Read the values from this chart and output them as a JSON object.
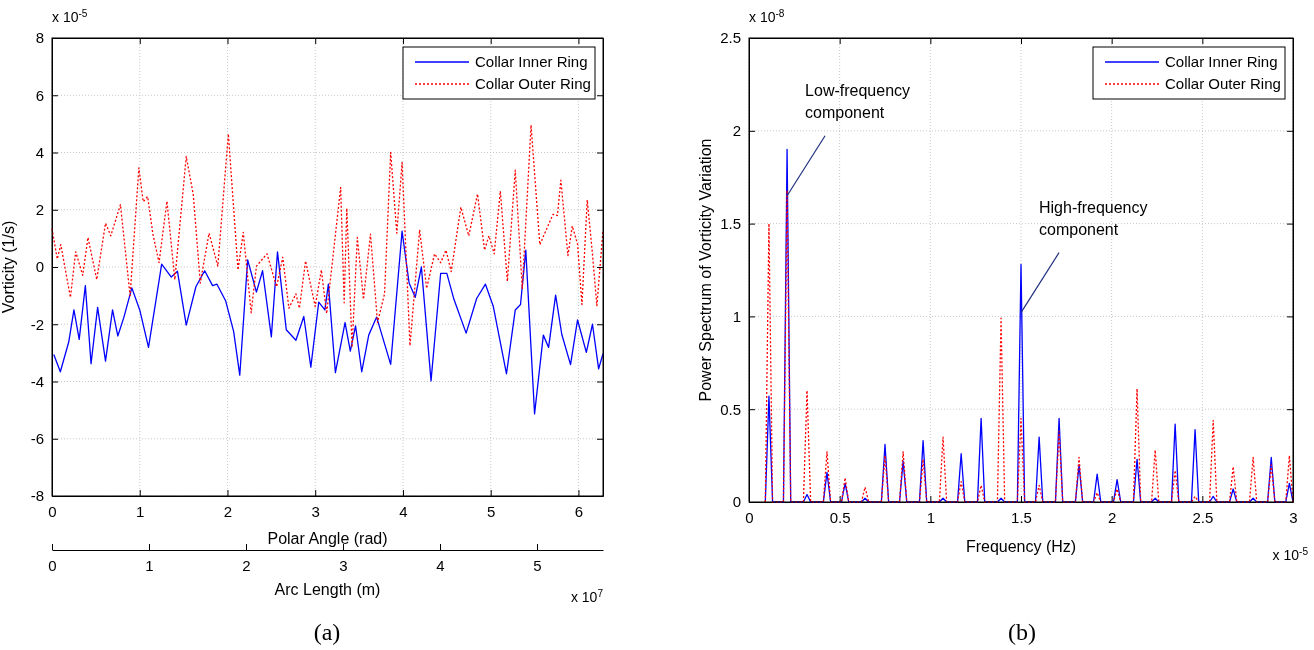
{
  "chart_data": [
    {
      "type": "line",
      "xlabel": "Polar Angle (rad)",
      "ylabel": "Vorticity (1/s)",
      "x2label": "Arc Length (m)",
      "xlim": [
        0,
        6.28
      ],
      "xticks": [
        0,
        1,
        2,
        3,
        4,
        5,
        6
      ],
      "ylim": [
        -8,
        8
      ],
      "yticks": [
        -8,
        -6,
        -4,
        -2,
        0,
        2,
        4,
        6,
        8
      ],
      "x2lim": [
        0,
        5.68
      ],
      "x2ticks": [
        0,
        1,
        2,
        3,
        4,
        5
      ],
      "grid": true,
      "legend": "top right",
      "marker": "none",
      "annotations": [
        "x 10$^{-5}$",
        "x 10$^{7}$",
        "(a)"
      ],
      "series": [
        {
          "name": "Collar Inner Ring",
          "color": "#0000ff",
          "line_style": "solid",
          "x": [
            0.02,
            0.095,
            0.19,
            0.25,
            0.31,
            0.38,
            0.445,
            0.52,
            0.61,
            0.69,
            0.75,
            0.82,
            0.91,
            1.0,
            1.1,
            1.25,
            1.36,
            1.43,
            1.53,
            1.64,
            1.74,
            1.83,
            1.88,
            1.98,
            2.07,
            2.14,
            2.23,
            2.33,
            2.4,
            2.5,
            2.57,
            2.67,
            2.78,
            2.87,
            2.95,
            3.04,
            3.11,
            3.15,
            3.23,
            3.34,
            3.4,
            3.46,
            3.53,
            3.61,
            3.7,
            3.86,
            3.99,
            4.07,
            4.14,
            4.21,
            4.32,
            4.43,
            4.5,
            4.58,
            4.72,
            4.84,
            4.94,
            5.03,
            5.18,
            5.28,
            5.34,
            5.4,
            5.5,
            5.6,
            5.66,
            5.74,
            5.81,
            5.91,
            5.99,
            6.09,
            6.16,
            6.23,
            6.28
          ],
          "values": [
            -3.06,
            -3.66,
            -2.63,
            -1.5,
            -2.53,
            -0.65,
            -3.38,
            -1.41,
            -3.29,
            -1.5,
            -2.41,
            -1.75,
            -0.73,
            -1.5,
            -2.81,
            0.1,
            -0.35,
            -0.15,
            -2.03,
            -0.69,
            -0.13,
            -0.65,
            -0.6,
            -1.19,
            -2.25,
            -3.78,
            0.25,
            -0.88,
            -0.13,
            -2.44,
            0.53,
            -2.19,
            -2.56,
            -1.73,
            -3.5,
            -1.23,
            -1.5,
            -0.6,
            -3.69,
            -1.94,
            -2.94,
            -2.06,
            -3.66,
            -2.38,
            -1.75,
            -3.4,
            1.25,
            -0.56,
            -1.06,
            0.0,
            -3.98,
            -0.22,
            -0.22,
            -1.12,
            -2.31,
            -1.1,
            -0.6,
            -1.38,
            -3.73,
            -1.5,
            -1.31,
            0.59,
            -5.13,
            -2.38,
            -2.81,
            -0.98,
            -2.35,
            -3.41,
            -1.85,
            -2.98,
            -2.0,
            -3.56,
            -3.03
          ]
        },
        {
          "name": "Collar Outer Ring",
          "color": "#ff0000",
          "line_style": "dotted",
          "x": [
            0,
            0.06,
            0.1,
            0.21,
            0.27,
            0.35,
            0.41,
            0.51,
            0.61,
            0.67,
            0.78,
            0.89,
            0.99,
            1.04,
            1.09,
            1.15,
            1.22,
            1.31,
            1.4,
            1.53,
            1.61,
            1.69,
            1.79,
            1.89,
            2.01,
            2.12,
            2.18,
            2.27,
            2.33,
            2.45,
            2.56,
            2.63,
            2.7,
            2.78,
            2.82,
            2.89,
            3.0,
            3.07,
            3.13,
            3.29,
            3.33,
            3.36,
            3.42,
            3.48,
            3.55,
            3.63,
            3.71,
            3.79,
            3.86,
            3.93,
            3.99,
            4.08,
            4.19,
            4.27,
            4.36,
            4.43,
            4.49,
            4.55,
            4.66,
            4.75,
            4.85,
            4.93,
            4.98,
            5.04,
            5.11,
            5.19,
            5.28,
            5.36,
            5.46,
            5.56,
            5.71,
            5.76,
            5.8,
            5.88,
            5.93,
            5.99,
            6.04,
            6.1,
            6.16,
            6.21,
            6.28
          ],
          "values": [
            1.34,
            0.28,
            0.78,
            -1.06,
            0.53,
            -0.29,
            1.03,
            -0.44,
            1.53,
            1.09,
            2.18,
            -1.0,
            3.46,
            2.28,
            2.46,
            1.15,
            0.15,
            2.3,
            -0.44,
            3.86,
            2.53,
            -0.56,
            1.18,
            0.03,
            4.65,
            -0.1,
            1.21,
            -1.6,
            0.03,
            0.46,
            -0.69,
            0.34,
            -1.44,
            -0.94,
            -1.44,
            0.21,
            -1.38,
            -0.1,
            -1.63,
            2.78,
            -1.25,
            2.05,
            -2.81,
            1.03,
            -1.13,
            1.15,
            -1.94,
            -0.94,
            4.0,
            1.18,
            3.65,
            -2.75,
            1.3,
            -0.75,
            0.46,
            0.15,
            0.59,
            -0.16,
            2.09,
            1.09,
            2.55,
            0.59,
            1.09,
            0.46,
            2.65,
            -0.5,
            3.38,
            -0.75,
            4.96,
            0.78,
            1.84,
            1.8,
            3.03,
            0.4,
            1.43,
            0.8,
            -1.31,
            2.34,
            0.46,
            -1.35,
            1.28
          ]
        }
      ]
    },
    {
      "type": "line",
      "xlabel": "Frequency (Hz)",
      "ylabel": "Power Spectrum of Vorticity Variation",
      "xlim": [
        0,
        3
      ],
      "xticks": [
        0,
        0.5,
        1,
        1.5,
        2,
        2.5,
        3
      ],
      "ylim": [
        0,
        2.5
      ],
      "yticks": [
        0,
        0.5,
        1,
        1.5,
        2,
        2.5
      ],
      "grid": true,
      "legend": "top right",
      "marker": "none",
      "annotations": [
        "x 10$^{-8}$",
        "x 10$^{-5}$",
        {
          "text": "Low-frequency component",
          "x": 0.21,
          "y": 1.65
        },
        {
          "text": "High-frequency component",
          "x": 1.5,
          "y": 1.02
        },
        "(b)"
      ],
      "x": [
        0.09,
        0.11,
        0.13,
        0.19,
        0.21,
        0.23,
        0.3,
        0.32,
        0.34,
        0.41,
        0.43,
        0.45,
        0.51,
        0.53,
        0.55,
        0.62,
        0.64,
        0.66,
        0.73,
        0.75,
        0.77,
        0.83,
        0.85,
        0.87,
        0.94,
        0.96,
        0.98,
        1.05,
        1.07,
        1.09,
        1.15,
        1.17,
        1.19,
        1.26,
        1.28,
        1.3,
        1.37,
        1.39,
        1.41,
        1.48,
        1.5,
        1.52,
        1.58,
        1.6,
        1.62,
        1.69,
        1.71,
        1.73,
        1.8,
        1.82,
        1.84,
        1.9,
        1.92,
        1.94,
        2.01,
        2.03,
        2.05,
        2.12,
        2.14,
        2.16,
        2.22,
        2.24,
        2.26,
        2.33,
        2.35,
        2.37,
        2.44,
        2.46,
        2.48,
        2.54,
        2.56,
        2.58,
        2.65,
        2.67,
        2.69,
        2.76,
        2.78,
        2.8,
        2.86,
        2.88,
        2.9,
        2.96,
        2.98,
        3.0
      ],
      "series": [
        {
          "name": "Collar Inner Ring",
          "color": "#0000ff",
          "line_style": "solid",
          "values": [
            0,
            0.57,
            0,
            0,
            1.9,
            0,
            0,
            0.04,
            0,
            0,
            0.16,
            0,
            0,
            0.1,
            0,
            0,
            0.02,
            0,
            0,
            0.31,
            0,
            0,
            0.22,
            0,
            0,
            0.33,
            0,
            0,
            0.02,
            0,
            0,
            0.26,
            0,
            0,
            0.45,
            0,
            0,
            0.02,
            0,
            0,
            1.28,
            0,
            0,
            0.35,
            0,
            0,
            0.45,
            0,
            0,
            0.2,
            0,
            0,
            0.15,
            0,
            0,
            0.12,
            0,
            0,
            0.23,
            0,
            0,
            0.02,
            0,
            0,
            0.42,
            0,
            0,
            0.39,
            0,
            0,
            0.03,
            0,
            0,
            0.07,
            0,
            0,
            0.02,
            0,
            0,
            0.24,
            0,
            0,
            0.1,
            0
          ]
        },
        {
          "name": "Collar Outer Ring",
          "color": "#ff0000",
          "line_style": "dotted",
          "values": [
            0,
            1.5,
            0,
            0,
            1.68,
            0,
            0,
            0.6,
            0,
            0,
            0.27,
            0,
            0,
            0.13,
            0,
            0,
            0.08,
            0,
            0,
            0.25,
            0,
            0,
            0.27,
            0,
            0,
            0.23,
            0,
            0,
            0.35,
            0,
            0,
            0.11,
            0,
            0,
            0.09,
            0,
            0,
            0.99,
            0,
            0,
            0.45,
            0,
            0,
            0.09,
            0,
            0,
            0.38,
            0,
            0,
            0.24,
            0,
            0,
            0.05,
            0,
            0,
            0.07,
            0,
            0,
            0.61,
            0,
            0,
            0.28,
            0,
            0,
            0.17,
            0,
            0,
            0.03,
            0,
            0,
            0.44,
            0,
            0,
            0.19,
            0,
            0,
            0.24,
            0,
            0,
            0.2,
            0,
            0,
            0.25,
            0
          ]
        }
      ]
    }
  ]
}
